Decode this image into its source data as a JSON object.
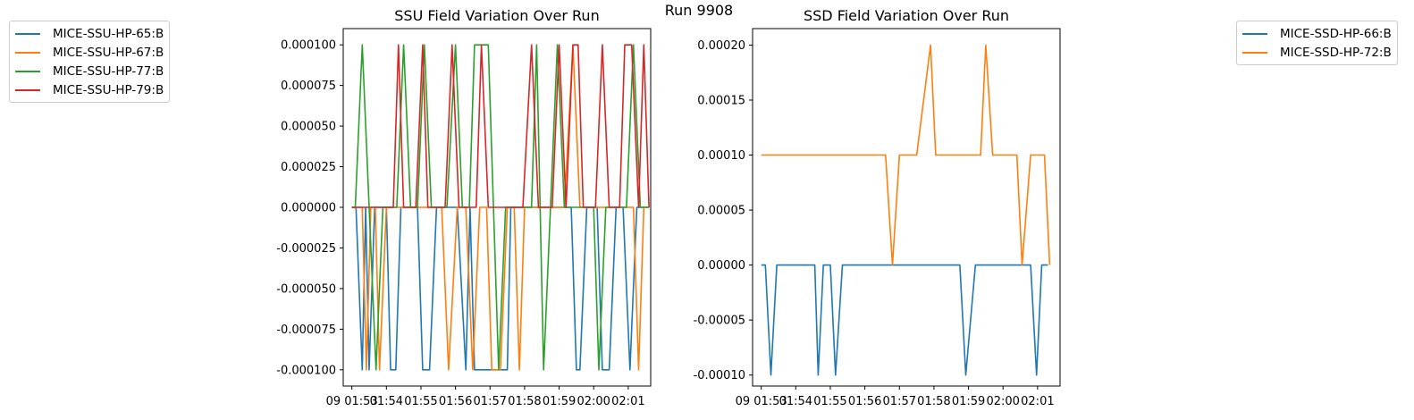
{
  "figure_title": "Run 9908",
  "chart_data": [
    {
      "type": "line",
      "title": "SSU Field Variation Over Run",
      "xlabel": "",
      "ylabel": "",
      "x_ticklabels": [
        "09 01:53",
        "09 01:54",
        "09 01:55",
        "09 01:56",
        "09 01:57",
        "09 01:58",
        "09 01:59",
        "09 02:00",
        "09 02:01"
      ],
      "x_ticklabels_display": [
        "09 01:53",
        "01:54",
        "01:55",
        "01:56",
        "01:57",
        "01:58",
        "01:59",
        "02:00",
        "02:01"
      ],
      "yticks": [
        "0.000100",
        "0.000075",
        "0.000050",
        "0.000025",
        "0.000000",
        "-0.000025",
        "-0.000050",
        "-0.000075",
        "-0.000100"
      ],
      "ylim": [
        -0.00011,
        0.00011
      ],
      "xlim": [
        -0.25,
        8.65
      ],
      "legend_position": "outside-left",
      "series": [
        {
          "name": "MICE-SSU-HP-65:B",
          "color": "#1f77b4",
          "x": [
            0,
            0.12,
            0.3,
            0.4,
            0.5,
            0.66,
            0.82,
            1.0,
            1.12,
            1.27,
            1.42,
            1.62,
            1.75,
            1.9,
            2.05,
            2.25,
            2.45,
            2.6,
            2.85,
            3.05,
            3.3,
            3.42,
            3.55,
            3.65,
            3.8,
            3.93,
            4.05,
            4.2,
            4.35,
            4.5,
            4.6,
            4.65,
            4.75,
            4.9,
            5.03,
            5.15,
            5.3,
            5.5,
            5.65,
            5.8,
            6.0,
            6.1,
            6.2,
            6.35,
            6.5,
            6.6,
            6.8,
            6.95,
            7.1,
            7.25,
            7.45,
            7.65,
            7.85,
            8.05,
            8.25,
            8.45,
            8.6
          ],
          "y": [
            0,
            0,
            -0.0001,
            0,
            -0.0001,
            0,
            0,
            0,
            -0.0001,
            -0.0001,
            0,
            0,
            0,
            0,
            -0.0001,
            -0.0001,
            0,
            0,
            0,
            0,
            -0.0001,
            0,
            -0.0001,
            -0.0001,
            -0.0001,
            -0.0001,
            -0.0001,
            -0.0001,
            -0.0001,
            -0.0001,
            0,
            0,
            0,
            0,
            0,
            0,
            0,
            0,
            0,
            0,
            0,
            0,
            0,
            0,
            -0.0001,
            -0.0001,
            0,
            0,
            0,
            -0.0001,
            -0.0001,
            0,
            0,
            -0.0001,
            0,
            0,
            0
          ]
        },
        {
          "name": "MICE-SSU-HP-67:B",
          "color": "#ff7f0e",
          "x": [
            0,
            0.2,
            0.3,
            0.42,
            0.55,
            0.68,
            0.8,
            1.0,
            1.2,
            1.45,
            1.65,
            1.85,
            2.15,
            2.4,
            2.6,
            2.8,
            3.05,
            3.3,
            3.5,
            3.7,
            3.9,
            4.05,
            4.15,
            4.3,
            4.5,
            4.7,
            4.85,
            5.0,
            5.25,
            5.4,
            5.6,
            5.8,
            6.0,
            6.15,
            6.4,
            6.6,
            6.8,
            7.0,
            7.2,
            7.4,
            7.6,
            7.8,
            8.0,
            8.15,
            8.3,
            8.45,
            8.6
          ],
          "y": [
            0,
            0,
            0,
            -0.0001,
            0,
            0,
            -0.0001,
            0,
            0,
            0,
            0,
            0,
            0,
            0,
            0,
            -0.0001,
            0,
            0,
            -0.0001,
            0,
            0,
            -0.0001,
            -0.0001,
            -0.0001,
            0,
            0,
            -0.0001,
            0,
            0,
            0,
            0,
            0,
            0,
            0,
            0.0001,
            0,
            0,
            0,
            0,
            0,
            0,
            0,
            0,
            0,
            -0.0001,
            0,
            0
          ]
        },
        {
          "name": "MICE-SSU-HP-77:B",
          "color": "#2ca02c",
          "x": [
            0,
            0.1,
            0.3,
            0.5,
            0.7,
            0.9,
            1.1,
            1.3,
            1.5,
            1.7,
            1.9,
            2.1,
            2.3,
            2.5,
            2.75,
            3.0,
            3.2,
            3.4,
            3.55,
            3.75,
            3.95,
            4.1,
            4.25,
            4.45,
            4.6,
            4.8,
            5.0,
            5.2,
            5.35,
            5.55,
            5.75,
            5.95,
            6.15,
            6.35,
            6.55,
            6.8,
            7.0,
            7.15,
            7.35,
            7.55,
            7.75,
            7.95,
            8.15,
            8.35,
            8.6
          ],
          "y": [
            0,
            0,
            0.0001,
            0,
            -0.0001,
            0,
            0,
            0,
            0.0001,
            0,
            0,
            0.0001,
            0,
            0,
            0,
            0.0001,
            0,
            0,
            0.0001,
            0.0001,
            0.0001,
            0,
            -0.0001,
            0,
            0,
            0,
            0,
            0,
            0.0001,
            -0.0001,
            0,
            0.0001,
            0,
            0,
            0,
            0,
            0,
            -0.0001,
            0,
            0,
            0,
            0,
            0.0001,
            0,
            0
          ]
        },
        {
          "name": "MICE-SSU-HP-79:B",
          "color": "#d62728",
          "x": [
            0,
            0.2,
            0.45,
            0.6,
            0.75,
            0.95,
            1.2,
            1.35,
            1.5,
            1.65,
            1.85,
            2.05,
            2.2,
            2.35,
            2.55,
            2.7,
            2.9,
            3.1,
            3.3,
            3.45,
            3.6,
            3.75,
            3.95,
            4.15,
            4.3,
            4.5,
            4.65,
            4.8,
            4.95,
            5.2,
            5.4,
            5.6,
            5.8,
            6.0,
            6.2,
            6.4,
            6.55,
            6.7,
            6.85,
            7.05,
            7.25,
            7.45,
            7.6,
            7.75,
            7.9,
            8.1,
            8.3,
            8.45,
            8.6
          ],
          "y": [
            0,
            0,
            0,
            0,
            0,
            0,
            0,
            0.0001,
            0,
            0,
            0,
            0.0001,
            0,
            0,
            0,
            0,
            0.0001,
            0,
            0,
            0,
            0,
            0.0001,
            0,
            0,
            0,
            0,
            0,
            0,
            0,
            0.0001,
            0,
            0,
            0,
            0.0001,
            0,
            0.0001,
            0.0001,
            0,
            0,
            0,
            0.0001,
            0,
            0,
            0,
            0.0001,
            0.0001,
            0,
            0.0001,
            0
          ]
        }
      ]
    },
    {
      "type": "line",
      "title": "SSD Field Variation Over Run",
      "xlabel": "",
      "ylabel": "",
      "x_ticklabels": [
        "09 01:53",
        "09 01:54",
        "09 01:55",
        "09 01:56",
        "09 01:57",
        "09 01:58",
        "09 01:59",
        "09 02:00",
        "09 02:01"
      ],
      "x_ticklabels_display": [
        "09 01:53",
        "01:54",
        "01:55",
        "01:56",
        "01:57",
        "01:58",
        "01:59",
        "02:00",
        "02:01"
      ],
      "yticks": [
        "0.00020",
        "0.00015",
        "0.00010",
        "0.00005",
        "0.00000",
        "-0.00005",
        "-0.00010"
      ],
      "ylim": [
        -0.00011,
        0.000215
      ],
      "xlim": [
        -0.25,
        8.65
      ],
      "legend_position": "outside-right",
      "series": [
        {
          "name": "MICE-SSD-HP-66:B",
          "color": "#1f77b4",
          "x": [
            0,
            0.12,
            0.28,
            0.45,
            0.65,
            1.0,
            1.3,
            1.55,
            1.65,
            1.8,
            2.0,
            2.15,
            2.35,
            2.6,
            3.0,
            3.5,
            4.0,
            4.5,
            5.0,
            5.5,
            5.75,
            5.92,
            6.2,
            6.5,
            7.0,
            7.5,
            7.8,
            7.97,
            8.12,
            8.3
          ],
          "y": [
            0,
            0,
            -0.0001,
            0,
            0,
            0,
            0,
            0,
            -0.0001,
            0,
            0,
            -0.0001,
            0,
            0,
            0,
            0,
            0,
            0,
            0,
            0,
            0,
            -0.0001,
            0,
            0,
            0,
            0,
            0,
            -0.0001,
            0,
            0
          ]
        },
        {
          "name": "MICE-SSD-HP-72:B",
          "color": "#ff7f0e",
          "x": [
            0,
            0.5,
            1.0,
            1.5,
            2.0,
            2.5,
            3.0,
            3.4,
            3.6,
            3.8,
            4.0,
            4.3,
            4.5,
            4.9,
            5.05,
            5.5,
            6.0,
            6.35,
            6.5,
            6.7,
            6.9,
            7.4,
            7.55,
            7.8,
            8.0,
            8.2,
            8.35
          ],
          "y": [
            0.0001,
            0.0001,
            0.0001,
            0.0001,
            0.0001,
            0.0001,
            0.0001,
            0.0001,
            0.0001,
            0,
            0.0001,
            0.0001,
            0.0001,
            0.0002,
            0.0001,
            0.0001,
            0.0001,
            0.0001,
            0.0002,
            0.0001,
            0.0001,
            0.0001,
            0,
            0.0001,
            0.0001,
            0.0001,
            0
          ]
        }
      ]
    }
  ]
}
